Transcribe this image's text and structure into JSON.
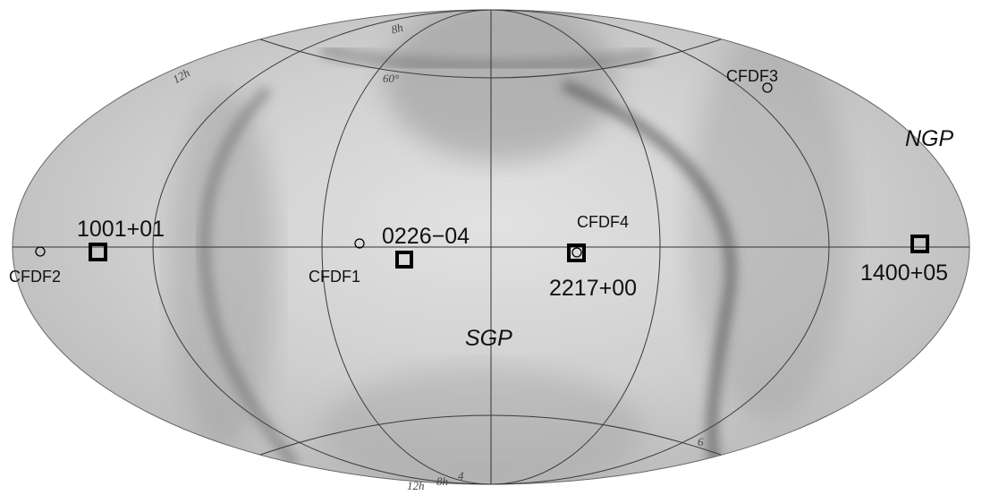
{
  "map": {
    "projection": "Aitoff (equatorial, all-sky)",
    "poles": {
      "north": "NGP",
      "south": "SGP"
    },
    "grid_labels": {
      "ra_top": [
        "12h",
        "8h"
      ],
      "dec_top": "60°",
      "ra_bottom": [
        "12h",
        "8h"
      ],
      "ra_bottom_extra": "4",
      "ra_right": "6"
    },
    "fields_large": [
      {
        "id": "1001+01",
        "label": "1001+01"
      },
      {
        "id": "0226-04",
        "label": "0226−04"
      },
      {
        "id": "2217+00",
        "label": "2217+00"
      },
      {
        "id": "1400+05",
        "label": "1400+05"
      }
    ],
    "fields_small": [
      {
        "id": "CFDF1",
        "label": "CFDF1"
      },
      {
        "id": "CFDF2",
        "label": "CFDF2"
      },
      {
        "id": "CFDF3",
        "label": "CFDF3"
      },
      {
        "id": "CFDF4",
        "label": "CFDF4"
      }
    ]
  }
}
